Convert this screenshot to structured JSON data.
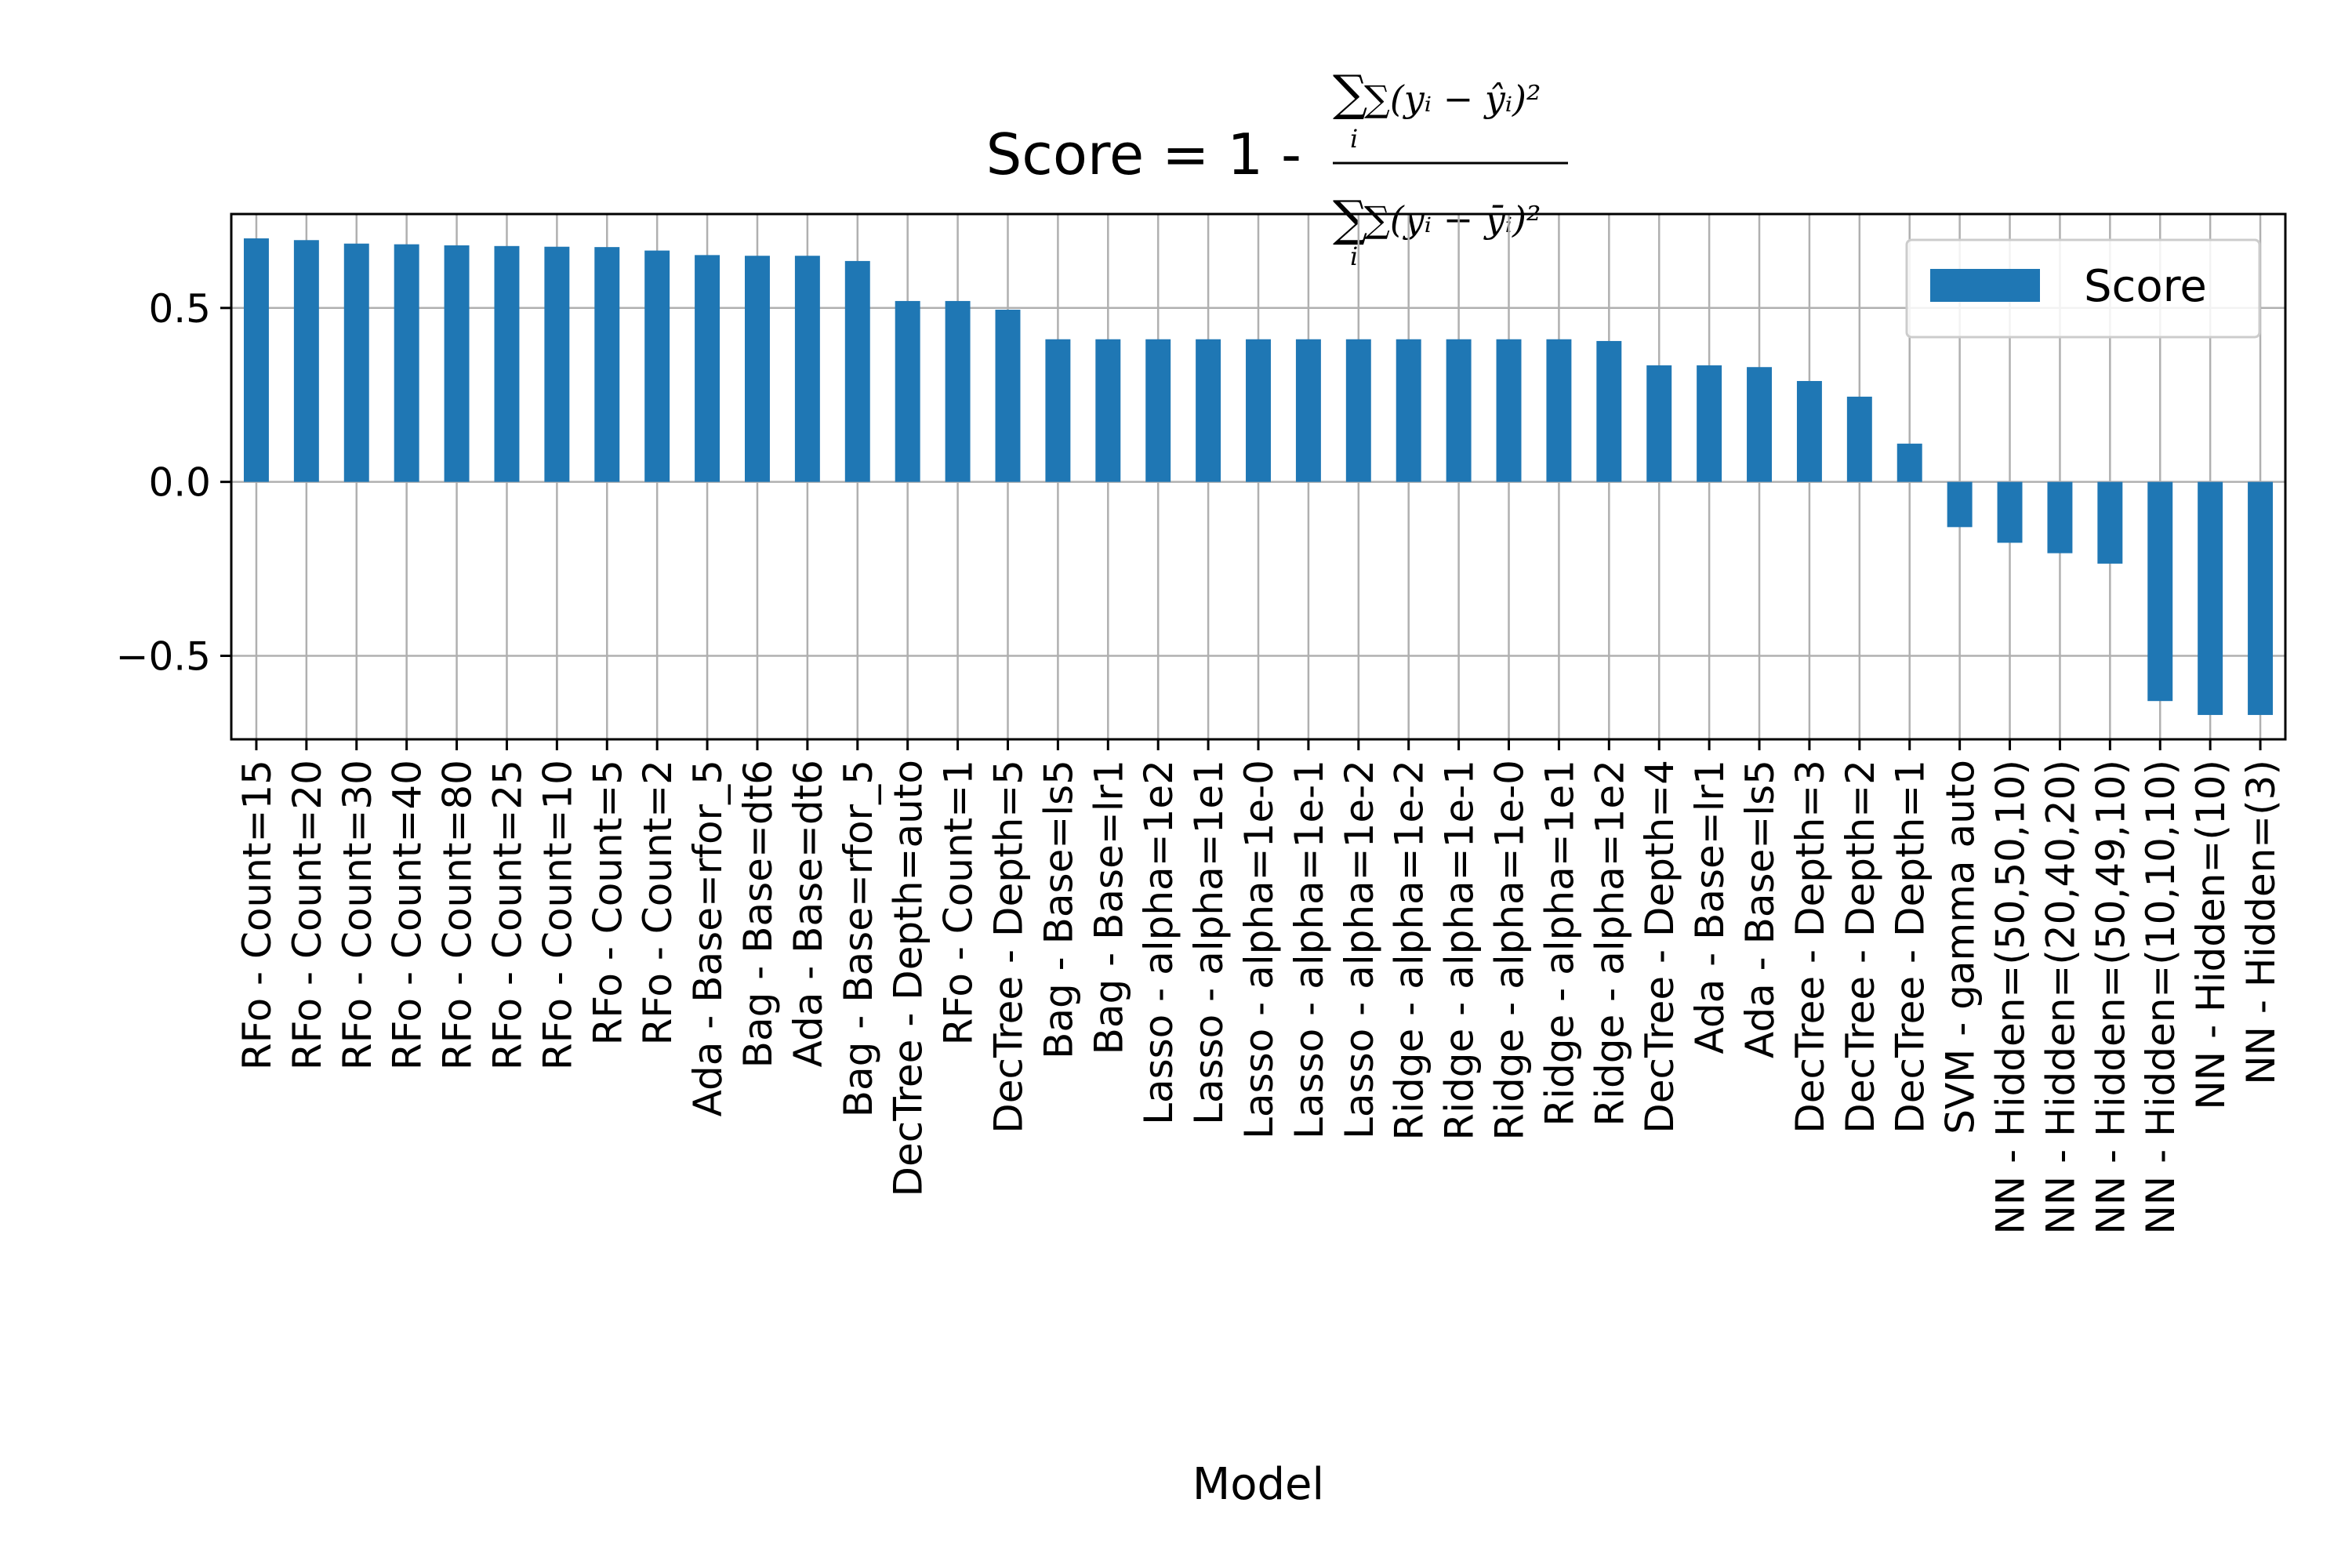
{
  "chart_data": {
    "type": "bar",
    "title": "Score = 1 - ",
    "title_formula": {
      "numerator": "∑(yᵢ − ŷᵢ)²",
      "denominator": "∑(yᵢ − ȳᵢ)²",
      "index": "i"
    },
    "xlabel": "Model",
    "ylabel": "",
    "ylim": [
      -0.74,
      0.77
    ],
    "yticks": [
      -0.5,
      0.0,
      0.5
    ],
    "ytick_labels": [
      "−0.5",
      "0.0",
      "0.5"
    ],
    "grid": true,
    "legend_position": "top-right",
    "bar_color": "#1f77b4",
    "series": [
      {
        "name": "Score",
        "values": [
          0.7,
          0.695,
          0.685,
          0.683,
          0.68,
          0.678,
          0.676,
          0.675,
          0.665,
          0.652,
          0.65,
          0.65,
          0.635,
          0.52,
          0.52,
          0.495,
          0.41,
          0.41,
          0.41,
          0.41,
          0.41,
          0.41,
          0.41,
          0.41,
          0.41,
          0.41,
          0.41,
          0.405,
          0.335,
          0.335,
          0.33,
          0.29,
          0.245,
          0.11,
          -0.13,
          -0.175,
          -0.205,
          -0.235,
          -0.63,
          -0.67,
          -0.67
        ]
      }
    ],
    "categories": [
      "RFo - Count=15",
      "RFo - Count=20",
      "RFo - Count=30",
      "RFo - Count=40",
      "RFo - Count=80",
      "RFo - Count=25",
      "RFo - Count=10",
      "RFo - Count=5",
      "RFo - Count=2",
      "Ada - Base=rfor_5",
      "Bag - Base=dt6",
      "Ada - Base=dt6",
      "Bag - Base=rfor_5",
      "DecTree - Depth=auto",
      "RFo - Count=1",
      "DecTree - Depth=5",
      "Bag - Base=ls5",
      "Bag - Base=lr1",
      "Lasso - alpha=1e2",
      "Lasso - alpha=1e1",
      "Lasso - alpha=1e-0",
      "Lasso - alpha=1e-1",
      "Lasso - alpha=1e-2",
      "Ridge - alpha=1e-2",
      "Ridge - alpha=1e-1",
      "Ridge - alpha=1e-0",
      "Ridge - alpha=1e1",
      "Ridge - alpha=1e2",
      "DecTree - Depth=4",
      "Ada - Base=lr1",
      "Ada - Base=ls5",
      "DecTree - Depth=3",
      "DecTree - Depth=2",
      "DecTree - Depth=1",
      "SVM - gamma auto",
      "NN - Hidden=(50,50,10)",
      "NN - Hidden=(20,40,20)",
      "NN - Hidden=(50,49,10)",
      "NN - Hidden=(10,10,10)",
      "NN - Hidden=(10)",
      "NN - Hidden=(3)"
    ]
  }
}
